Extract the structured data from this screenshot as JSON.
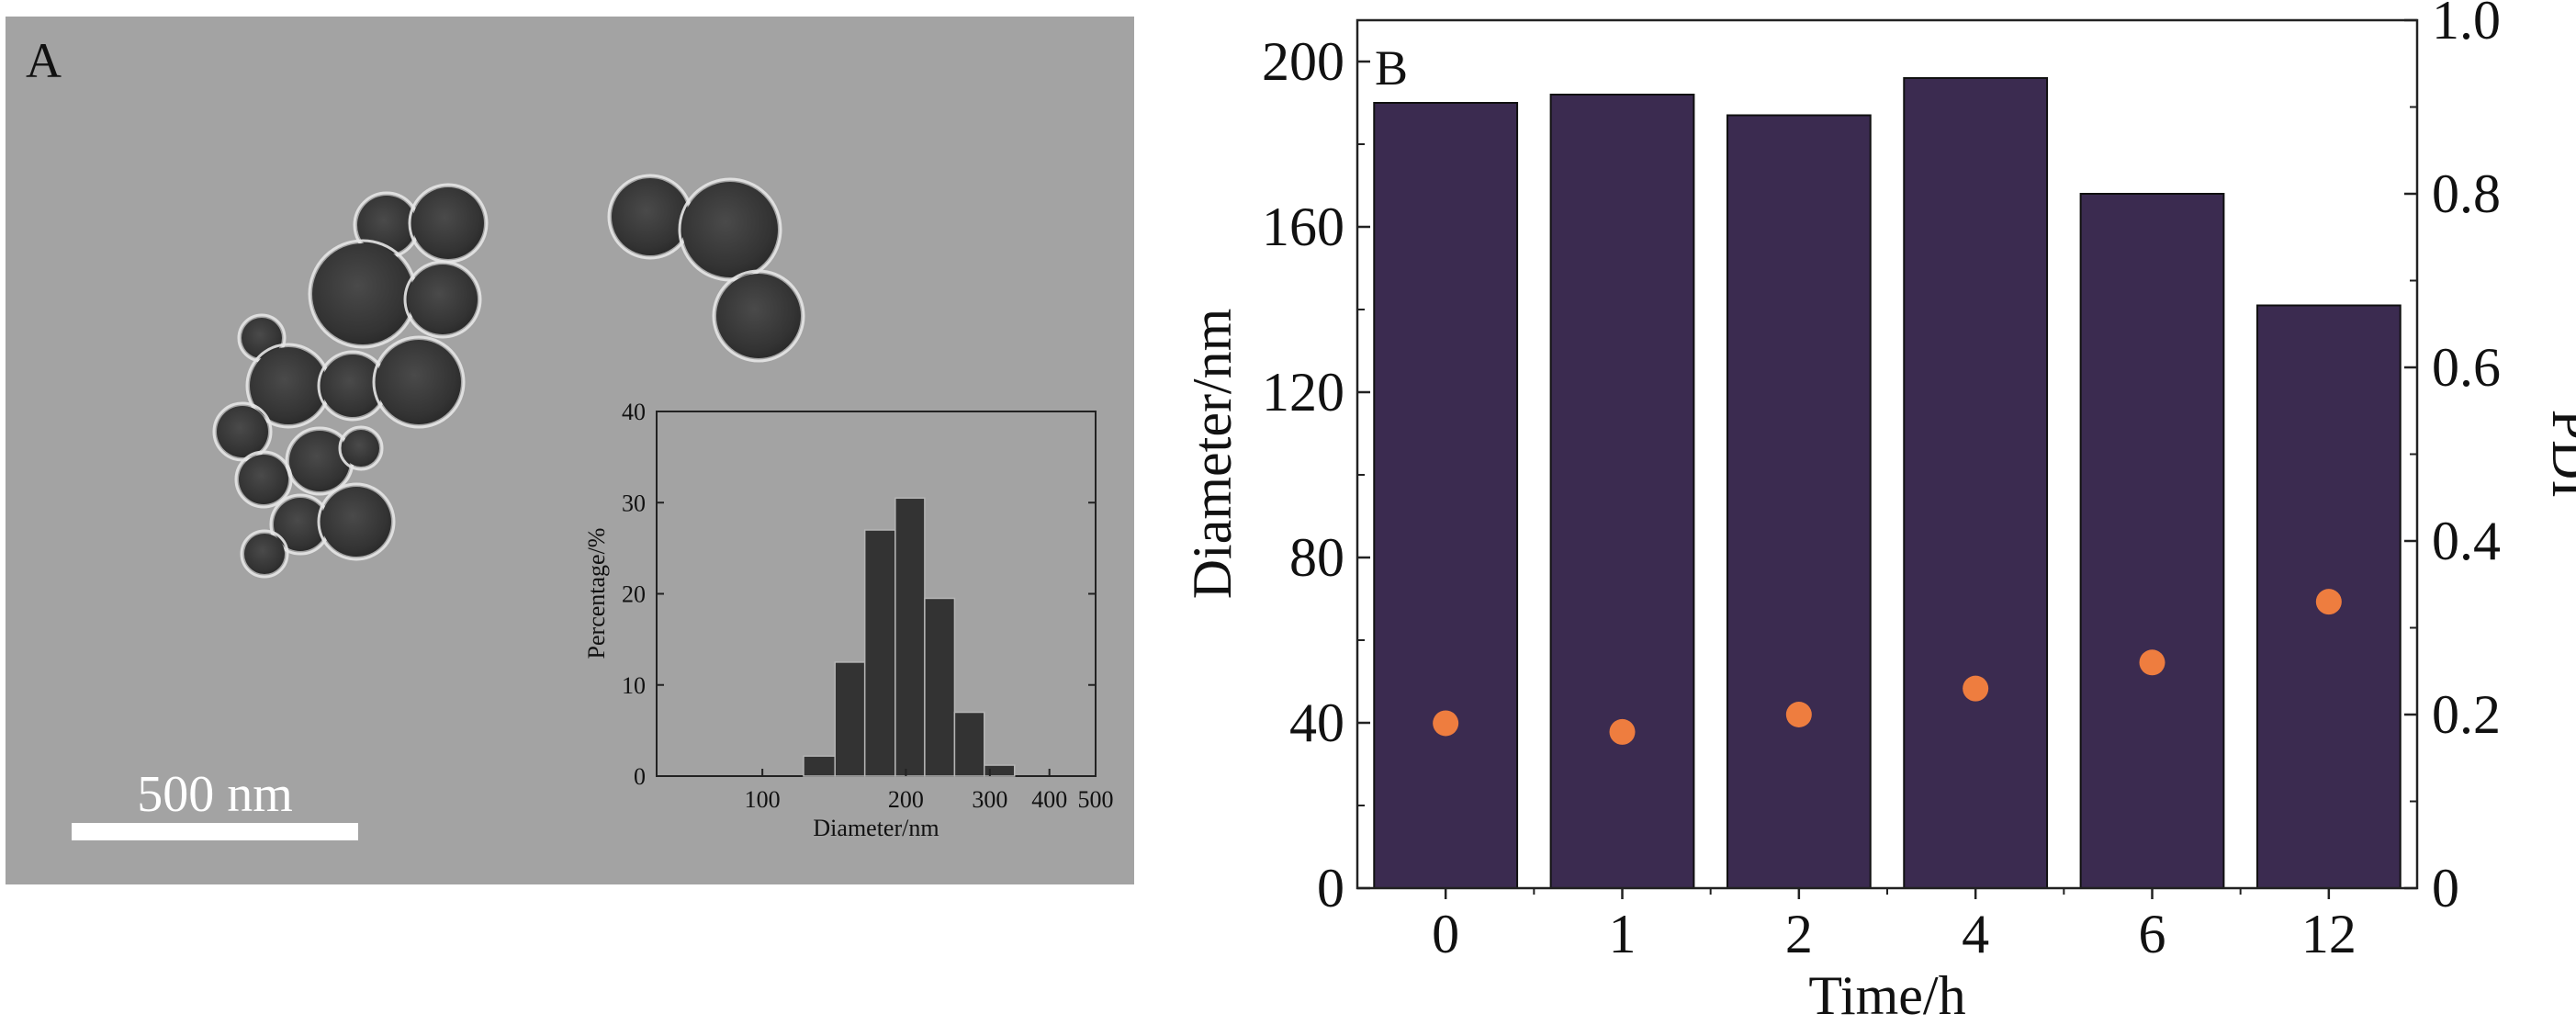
{
  "panel_a": {
    "label": "A",
    "scale_bar_label": "500 nm",
    "background_color": "#a3a3a3",
    "particle_color": "#3a3a3a"
  },
  "panel_b": {
    "label": "B"
  },
  "chart_data": [
    {
      "type": "bar",
      "panel": "A-inset",
      "xlabel": "Diameter/nm",
      "ylabel": "Percentage/%",
      "x_scale": "log",
      "xlim": [
        60,
        500
      ],
      "ylim": [
        0,
        40
      ],
      "x_ticks": [
        100,
        200,
        300,
        400,
        500
      ],
      "y_ticks": [
        0,
        10,
        20,
        30,
        40
      ],
      "bin_edges": [
        122,
        142,
        164,
        190,
        219,
        253,
        292,
        338
      ],
      "values": [
        2.2,
        12.5,
        27,
        30.5,
        19.5,
        7,
        1.2
      ],
      "bar_color": "#333333",
      "grid": false
    },
    {
      "type": "bar",
      "panel": "B",
      "categories": [
        "0",
        "1",
        "2",
        "4",
        "6",
        "12"
      ],
      "xlabel": "Time/h",
      "ylabel": "Diameter/nm",
      "y2label": "PDI",
      "ylim": [
        0,
        210
      ],
      "y2lim": [
        0,
        1.0
      ],
      "y_ticks": [
        0,
        40,
        80,
        120,
        160,
        200
      ],
      "y2_ticks": [
        "0",
        "0.2",
        "0.4",
        "0.6",
        "0.8",
        "1.0"
      ],
      "series": [
        {
          "axis": "left",
          "kind": "bar",
          "values": [
            190,
            192,
            187,
            196,
            168,
            141
          ],
          "color": "#3b2b50"
        },
        {
          "axis": "right",
          "kind": "scatter",
          "values": [
            0.19,
            0.18,
            0.2,
            0.23,
            0.26,
            0.33
          ],
          "color": "#ee7d3f"
        }
      ],
      "grid": false
    }
  ]
}
